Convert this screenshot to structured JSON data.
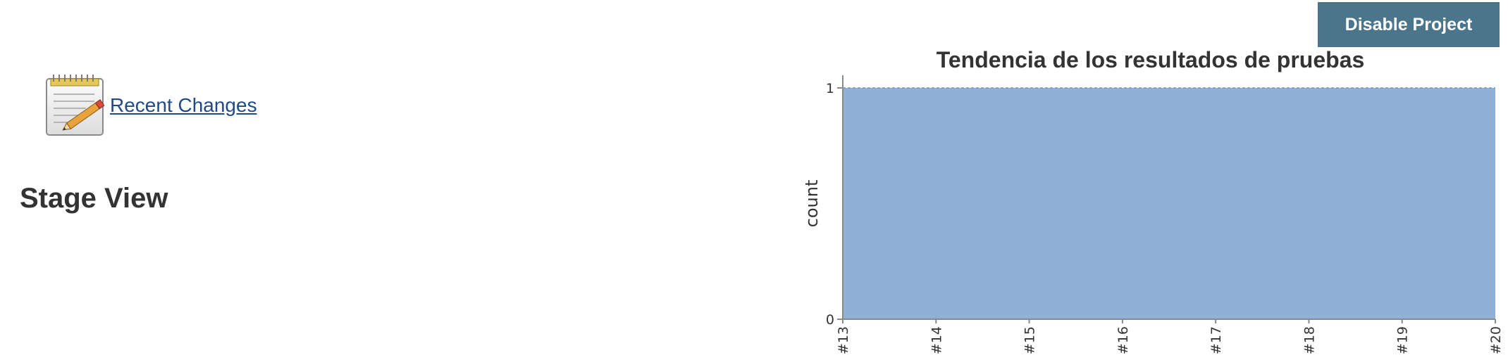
{
  "header": {
    "disable_button_label": "Disable Project"
  },
  "sidebar": {
    "recent_changes_label": "Recent Changes",
    "icon": "notepad-pencil-icon"
  },
  "main": {
    "stage_view_heading": "Stage View"
  },
  "colors": {
    "button_bg": "#4b758b",
    "link": "#204a87",
    "area_fill": "#8fb1d6",
    "area_line": "#7397c2"
  },
  "chart_data": {
    "type": "area",
    "title": "Tendencia de los resultados de pruebas",
    "xlabel": "",
    "ylabel": "count",
    "categories": [
      "#13",
      "#14",
      "#15",
      "#16",
      "#17",
      "#18",
      "#19",
      "#20"
    ],
    "series": [
      {
        "values": [
          1,
          1,
          1,
          1,
          1,
          1,
          1,
          1
        ]
      }
    ],
    "yticks": [
      "0",
      "1"
    ],
    "ylim": [
      0,
      1
    ],
    "grid": false,
    "legend": "none"
  }
}
